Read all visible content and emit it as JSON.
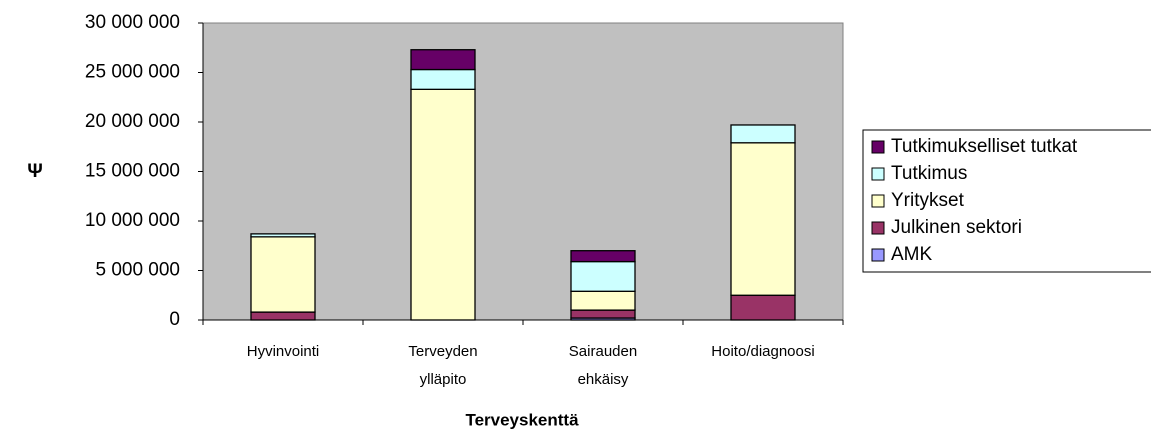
{
  "chart_data": {
    "type": "bar",
    "stacked": true,
    "y_label": "Ψ",
    "x_label": "Terveyskenttä",
    "categories": [
      "Hyvinvointi",
      "Terveyden ylläpito",
      "Sairauden ehkäisy",
      "Hoito/diagnoosi"
    ],
    "series": [
      {
        "name": "AMK",
        "color": "#9999ff",
        "values": [
          0,
          0,
          200000,
          0
        ]
      },
      {
        "name": "Julkinen sektori",
        "color": "#993366",
        "values": [
          800000,
          0,
          800000,
          2500000
        ]
      },
      {
        "name": "Yritykset",
        "color": "#ffffcc",
        "values": [
          7600000,
          23300000,
          1900000,
          15400000
        ]
      },
      {
        "name": "Tutkimus",
        "color": "#ccffff",
        "values": [
          300000,
          2000000,
          3000000,
          1800000
        ]
      },
      {
        "name": "Tutkimukselliset tutkat",
        "color": "#660066",
        "values": [
          0,
          2000000,
          1100000,
          0
        ]
      }
    ],
    "ylim": [
      0,
      30000000
    ],
    "yticks": [
      {
        "value": 0,
        "label": "0"
      },
      {
        "value": 5000000,
        "label": "5 000 000"
      },
      {
        "value": 10000000,
        "label": "10 000 000"
      },
      {
        "value": 15000000,
        "label": "15 000 000"
      },
      {
        "value": 20000000,
        "label": "20 000 000"
      },
      {
        "value": 25000000,
        "label": "25 000 000"
      },
      {
        "value": 30000000,
        "label": "30 000 000"
      }
    ],
    "plot_background": "#c0c0c0",
    "legend": "right"
  }
}
